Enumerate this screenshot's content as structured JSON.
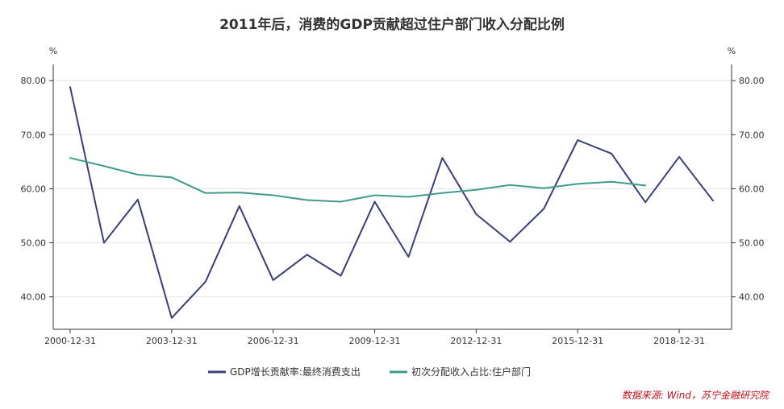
{
  "chart_data": {
    "type": "line",
    "title": "2011年后，消费的GDP贡献超过住户部门收入分配比例",
    "left_unit": "%",
    "right_unit": "%",
    "ylim": [
      34,
      83
    ],
    "yticks": [
      40,
      50,
      60,
      70,
      80
    ],
    "ytick_labels": [
      "40.00",
      "50.00",
      "60.00",
      "70.00",
      "80.00"
    ],
    "x": [
      2000,
      2001,
      2002,
      2003,
      2004,
      2005,
      2006,
      2007,
      2008,
      2009,
      2010,
      2011,
      2012,
      2013,
      2014,
      2015,
      2016,
      2017,
      2018,
      2019
    ],
    "xlim": [
      2000,
      2019
    ],
    "xticks": [
      2000,
      2003,
      2006,
      2009,
      2012,
      2015,
      2018
    ],
    "xtick_labels": [
      "2000-12-31",
      "2003-12-31",
      "2006-12-31",
      "2009-12-31",
      "2012-12-31",
      "2015-12-31",
      "2018-12-31"
    ],
    "series": [
      {
        "name": "GDP增长贡献率:最终消费支出",
        "color": "#3a3f73",
        "values": [
          78.8,
          50.0,
          58.0,
          36.1,
          42.8,
          56.8,
          43.1,
          47.8,
          43.9,
          57.6,
          47.4,
          65.7,
          55.3,
          50.2,
          56.3,
          69.0,
          66.5,
          57.5,
          65.9,
          57.8
        ]
      },
      {
        "name": "初次分配收入占比:住户部门",
        "color": "#3f9c89",
        "values": [
          65.7,
          64.2,
          62.6,
          62.1,
          59.2,
          59.3,
          58.8,
          57.9,
          57.6,
          58.8,
          58.5,
          59.2,
          59.8,
          60.7,
          60.1,
          60.9,
          61.3,
          60.6,
          null,
          null
        ]
      }
    ],
    "legend_position": "bottom",
    "grid": true,
    "source_note": "数据来源: Wind，苏宁金融研究院"
  }
}
